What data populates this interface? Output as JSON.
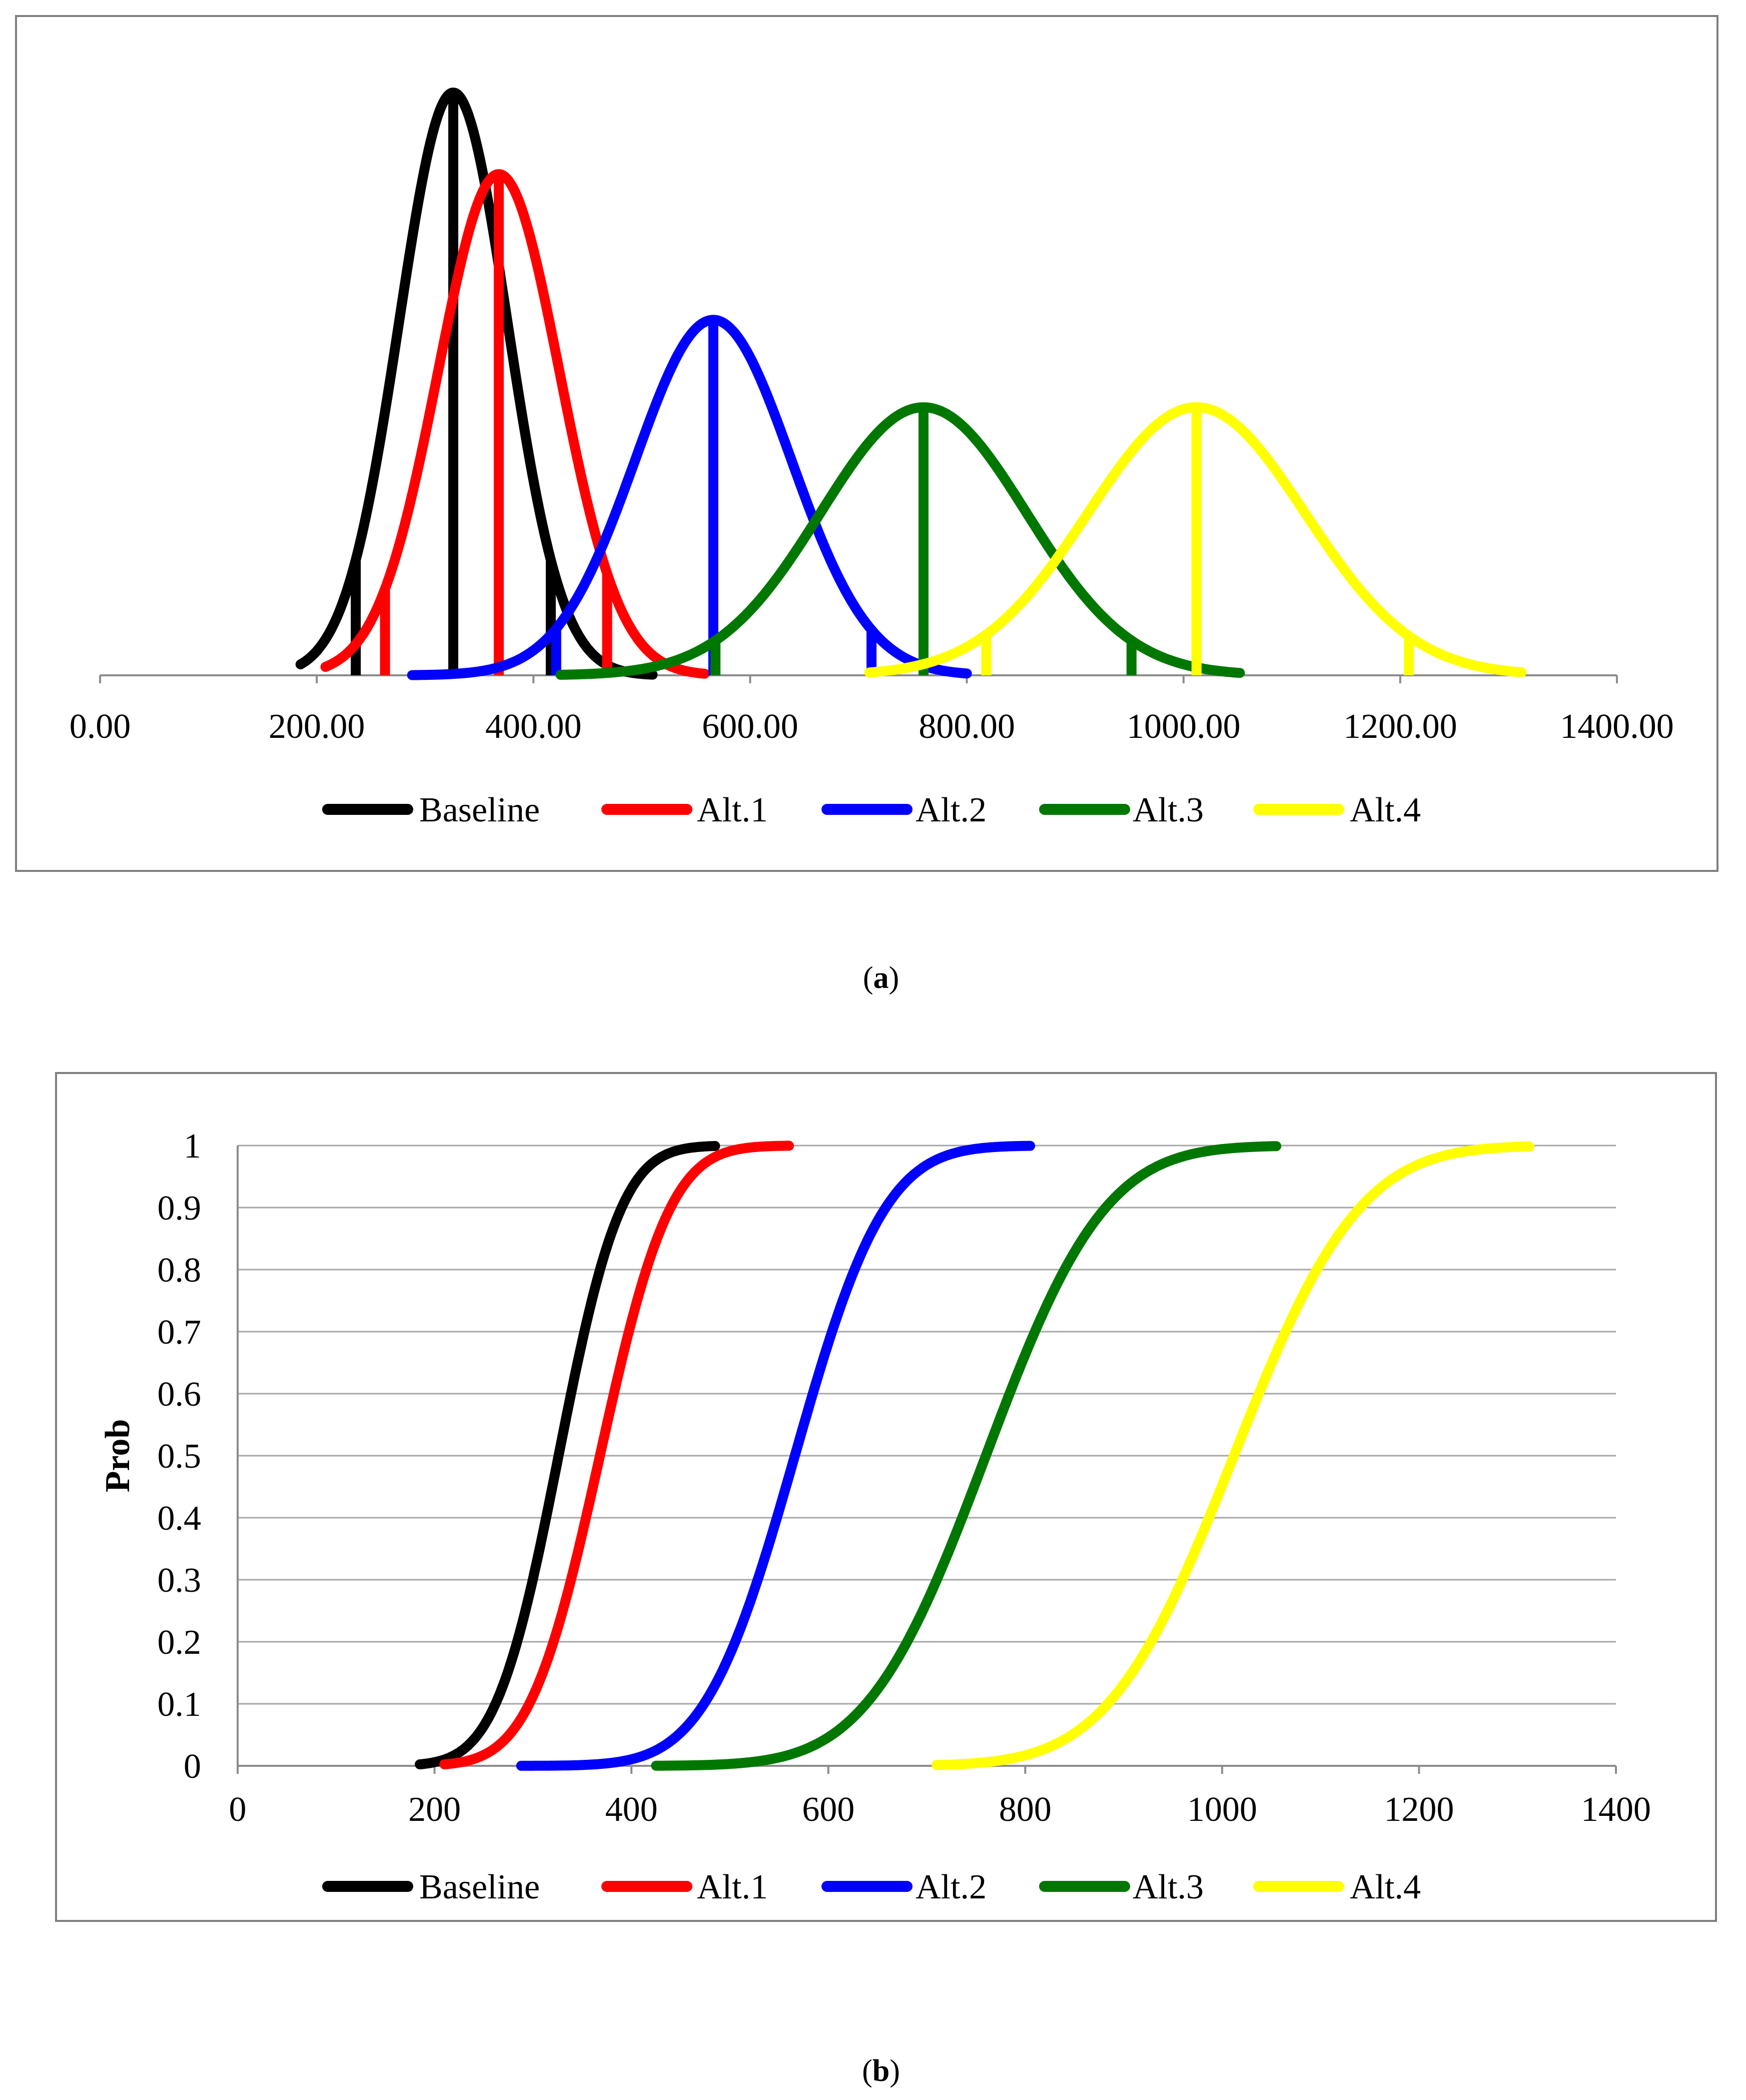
{
  "colors": {
    "Baseline": "#000000",
    "Alt.1": "#ff0000",
    "Alt.2": "#0000ff",
    "Alt.3": "#007700",
    "Alt.4": "#ffff00"
  },
  "chart_data": [
    {
      "type": "line",
      "panel": "a",
      "caption": "a",
      "title": "",
      "xlabel": "",
      "ylabel": "",
      "xlim": [
        0,
        1400
      ],
      "x_tick_labels": [
        "0.00",
        "200.00",
        "400.00",
        "600.00",
        "800.00",
        "1000.00",
        "1200.00",
        "1400.00"
      ],
      "y_axis_visible": false,
      "grid": false,
      "legend_position": "bottom",
      "series": [
        {
          "name": "Baseline",
          "mean": 326,
          "sd": 50,
          "range": [
            185,
            510
          ],
          "peak_height": 1.0,
          "marker_lines": [
            236,
            326,
            416
          ]
        },
        {
          "name": "Alt.1",
          "mean": 368,
          "sd": 56,
          "range": [
            208,
            558
          ],
          "peak_height": 0.86,
          "marker_lines": [
            263,
            368,
            468
          ]
        },
        {
          "name": "Alt.2",
          "mean": 566,
          "sd": 72,
          "range": [
            288,
            800
          ],
          "peak_height": 0.61,
          "marker_lines": [
            421,
            566,
            712
          ]
        },
        {
          "name": "Alt.3",
          "mean": 760,
          "sd": 95,
          "range": [
            425,
            1052
          ],
          "peak_height": 0.46,
          "marker_lines": [
            568,
            760,
            952
          ]
        },
        {
          "name": "Alt.4",
          "mean": 1012,
          "sd": 100,
          "range": [
            710,
            1312
          ],
          "peak_height": 0.46,
          "marker_lines": [
            818,
            1012,
            1208
          ]
        }
      ]
    },
    {
      "type": "line",
      "panel": "b",
      "caption": "b",
      "title": "",
      "xlabel": "",
      "ylabel": "Prob",
      "xlim": [
        0,
        1400
      ],
      "ylim": [
        0,
        1
      ],
      "x_tick_labels": [
        "0",
        "200",
        "400",
        "600",
        "800",
        "1000",
        "1200",
        "1400"
      ],
      "y_tick_labels": [
        "0",
        "0.1",
        "0.2",
        "0.3",
        "0.4",
        "0.5",
        "0.6",
        "0.7",
        "0.8",
        "0.9",
        "1"
      ],
      "grid": true,
      "legend_position": "bottom",
      "series": [
        {
          "name": "Baseline",
          "mean": 326,
          "sd": 50,
          "range": [
            185,
            485
          ]
        },
        {
          "name": "Alt.1",
          "mean": 368,
          "sd": 56,
          "range": [
            210,
            560
          ]
        },
        {
          "name": "Alt.2",
          "mean": 566,
          "sd": 72,
          "range": [
            288,
            805
          ]
        },
        {
          "name": "Alt.3",
          "mean": 760,
          "sd": 95,
          "range": [
            425,
            1055
          ]
        },
        {
          "name": "Alt.4",
          "mean": 1012,
          "sd": 100,
          "range": [
            710,
            1312
          ]
        }
      ]
    }
  ]
}
